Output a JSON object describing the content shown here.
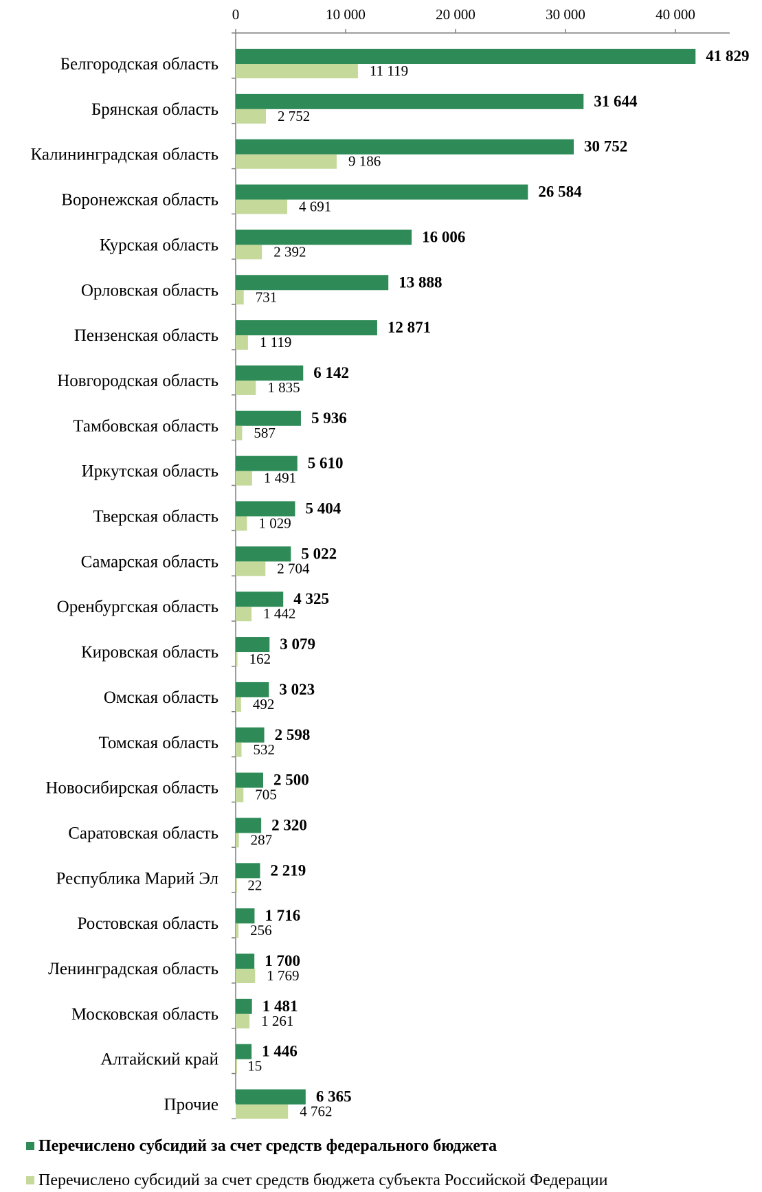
{
  "chart_data": {
    "type": "bar",
    "orientation": "horizontal",
    "categories": [
      "Белгородская область",
      "Брянская область",
      "Калининградская область",
      "Воронежская область",
      "Курская область",
      "Орловская область",
      "Пензенская область",
      "Новгородская область",
      "Тамбовская область",
      "Иркутская область",
      "Тверская область",
      "Самарская область",
      "Оренбургская область",
      "Кировская область",
      "Омская область",
      "Томская область",
      "Новосибирская область",
      "Саратовская область",
      "Республика Марий Эл",
      "Ростовская область",
      "Ленинградская область",
      "Московская область",
      "Алтайский край",
      "Прочие"
    ],
    "series": [
      {
        "name": "Перечислено субсидий за счет средств федерального бюджета",
        "color": "#2e8b57",
        "values": [
          41829,
          31644,
          30752,
          26584,
          16006,
          13888,
          12871,
          6142,
          5936,
          5610,
          5404,
          5022,
          4325,
          3079,
          3023,
          2598,
          2500,
          2320,
          2219,
          1716,
          1700,
          1481,
          1446,
          6365
        ],
        "labels": [
          "41 829",
          "31 644",
          "30 752",
          "26 584",
          "16 006",
          "13 888",
          "12 871",
          "6 142",
          "5 936",
          "5 610",
          "5 404",
          "5 022",
          "4 325",
          "3 079",
          "3 023",
          "2 598",
          "2 500",
          "2 320",
          "2 219",
          "1 716",
          "1 700",
          "1 481",
          "1 446",
          "6 365"
        ]
      },
      {
        "name": "Перечислено субсидий за счет средств бюджета субъекта Российской Федерации",
        "color": "#c5d99b",
        "values": [
          11119,
          2752,
          9186,
          4691,
          2392,
          731,
          1119,
          1835,
          587,
          1491,
          1029,
          2704,
          1442,
          162,
          492,
          532,
          705,
          287,
          22,
          256,
          1769,
          1261,
          15,
          4762
        ],
        "labels": [
          "11 119",
          "2 752",
          "9 186",
          "4 691",
          "2 392",
          "731",
          "1 119",
          "1 835",
          "587",
          "1 491",
          "1 029",
          "2 704",
          "1 442",
          "162",
          "492",
          "532",
          "705",
          "287",
          "22",
          "256",
          "1 769",
          "1 261",
          "15",
          "4 762"
        ]
      }
    ],
    "x_ticks": [
      0,
      10000,
      20000,
      30000,
      40000
    ],
    "x_tick_labels": [
      "0",
      "10 000",
      "20 000",
      "30 000",
      "40 000"
    ],
    "xlim": [
      0,
      45000
    ],
    "axis_position": "top",
    "grid": false,
    "legend_position": "bottom",
    "title": "",
    "xlabel": "",
    "ylabel": ""
  }
}
